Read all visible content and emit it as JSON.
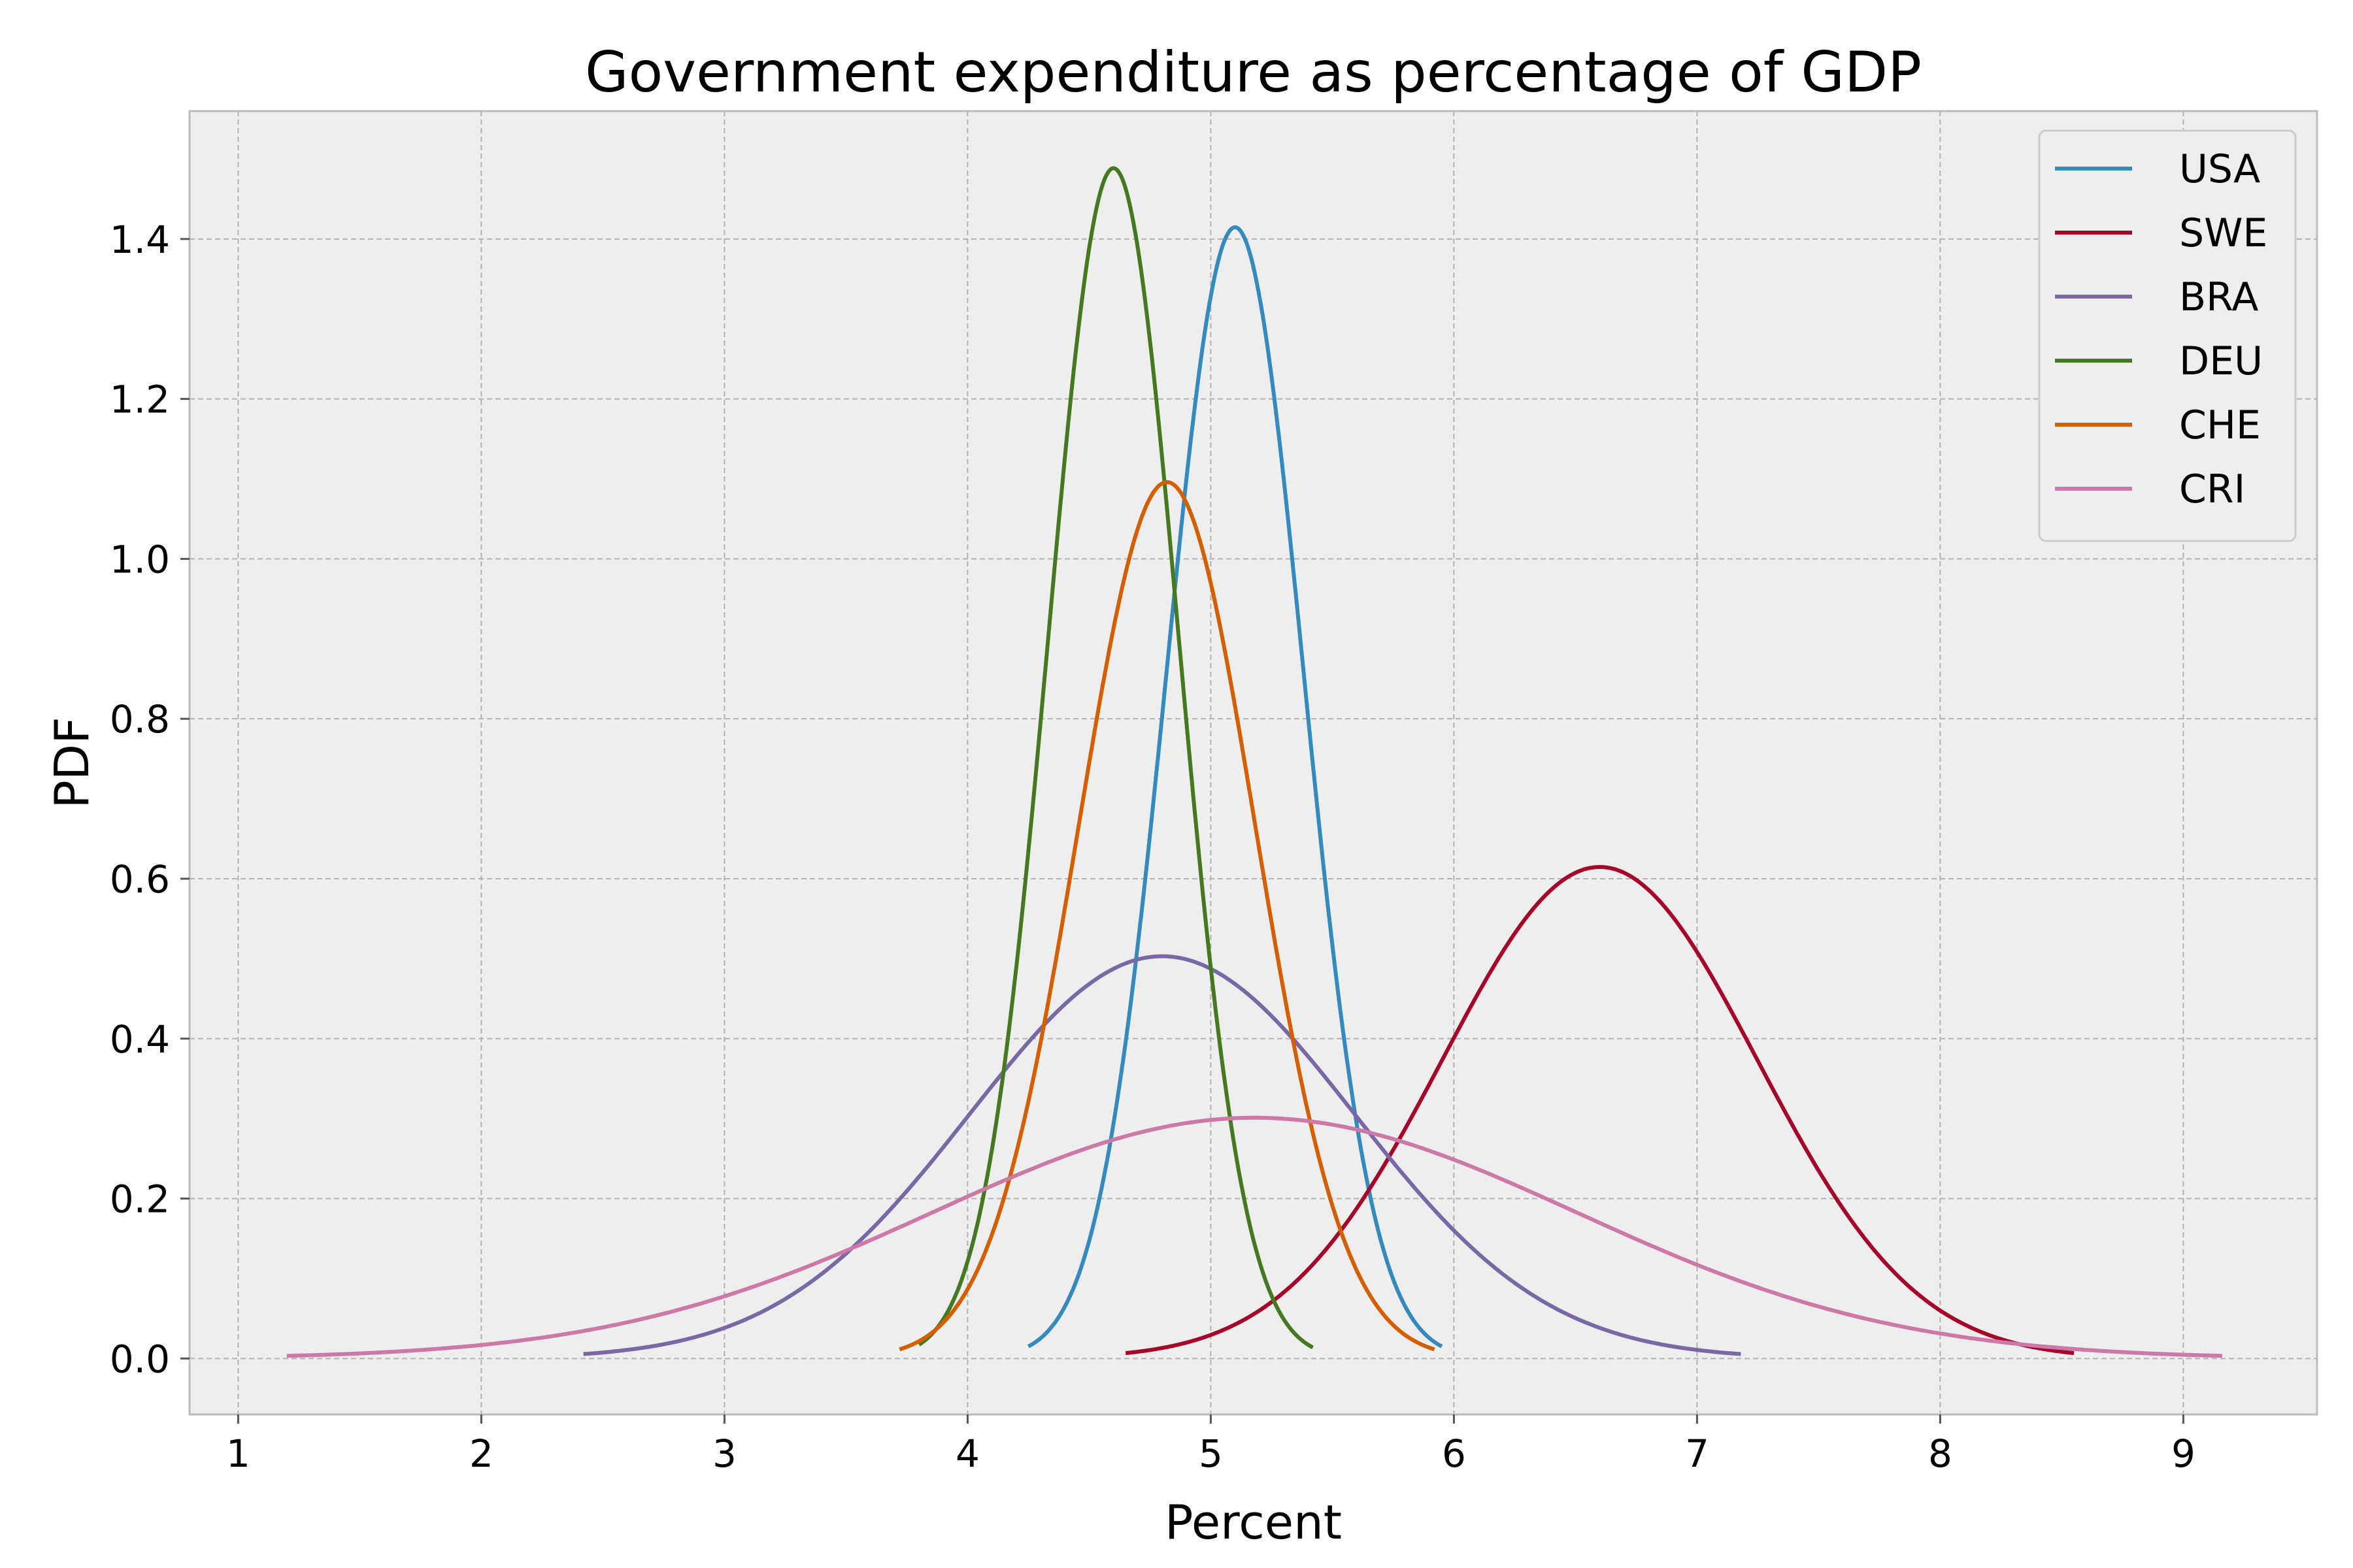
{
  "chart_data": {
    "type": "line",
    "title": "Government expenditure as percentage of GDP",
    "xlabel": "Percent",
    "ylabel": "PDF",
    "xlim": [
      0.8,
      9.55
    ],
    "ylim": [
      -0.07,
      1.56
    ],
    "xticks": [
      1,
      2,
      3,
      4,
      5,
      6,
      7,
      8,
      9
    ],
    "xtick_labels": [
      "1",
      "2",
      "3",
      "4",
      "5",
      "6",
      "7",
      "8",
      "9"
    ],
    "yticks": [
      0.0,
      0.2,
      0.4,
      0.6,
      0.8,
      1.0,
      1.2,
      1.4
    ],
    "ytick_labels": [
      "0.0",
      "0.2",
      "0.4",
      "0.6",
      "0.8",
      "1.0",
      "1.2",
      "1.4"
    ],
    "grid": true,
    "legend_position": "top-right",
    "series": [
      {
        "name": "USA",
        "color": "#348ABD",
        "distribution": "normal",
        "mean": 5.1,
        "std": 0.282,
        "x_range": [
          4.25,
          5.95
        ]
      },
      {
        "name": "SWE",
        "color": "#A60628",
        "distribution": "normal",
        "mean": 6.6,
        "std": 0.649,
        "x_range": [
          4.65,
          8.55
        ]
      },
      {
        "name": "BRA",
        "color": "#7A68A6",
        "distribution": "normal",
        "mean": 4.8,
        "std": 0.793,
        "x_range": [
          2.42,
          7.18
        ]
      },
      {
        "name": "DEU",
        "color": "#467821",
        "distribution": "normal",
        "mean": 4.6,
        "std": 0.268,
        "x_range": [
          3.8,
          5.42
        ]
      },
      {
        "name": "CHE",
        "color": "#D55E00",
        "distribution": "normal",
        "mean": 4.82,
        "std": 0.364,
        "x_range": [
          3.72,
          5.92
        ]
      },
      {
        "name": "CRI",
        "color": "#CC79A7",
        "distribution": "normal",
        "mean": 5.18,
        "std": 1.325,
        "x_range": [
          1.2,
          9.16
        ]
      }
    ]
  }
}
